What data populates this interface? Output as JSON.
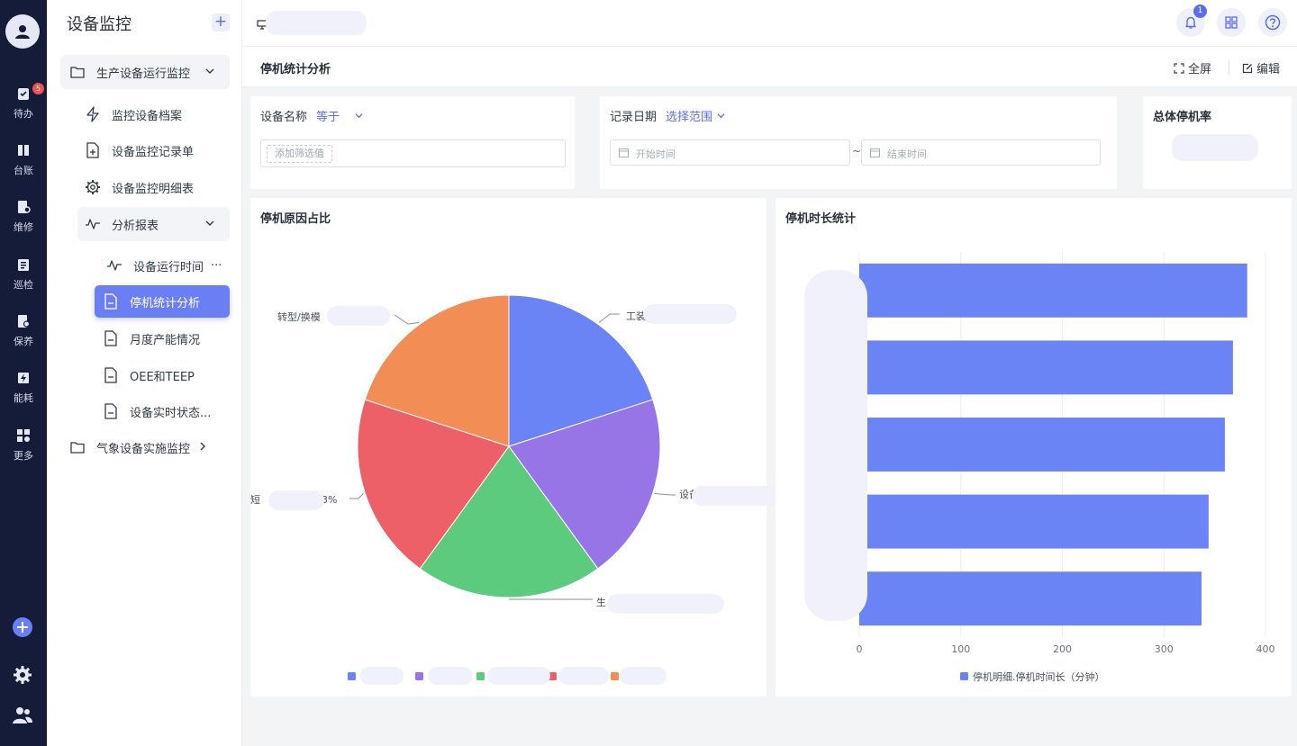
{
  "rail": {
    "badge": "5",
    "items": [
      {
        "label": "待办",
        "icon": "todo-icon"
      },
      {
        "label": "台账",
        "icon": "ledger-icon"
      },
      {
        "label": "维修",
        "icon": "repair-icon"
      },
      {
        "label": "巡检",
        "icon": "inspection-icon"
      },
      {
        "label": "保养",
        "icon": "maintenance-icon"
      },
      {
        "label": "能耗",
        "icon": "energy-icon"
      },
      {
        "label": "更多",
        "icon": "more-icon"
      }
    ]
  },
  "sidebar": {
    "title": "设备监控",
    "add_symbol": "+",
    "group1": "生产设备运行监控",
    "items": [
      {
        "label": "监控设备档案",
        "icon": "bolt-icon"
      },
      {
        "label": "设备监控记录单",
        "icon": "file-plus-icon"
      },
      {
        "label": "设备监控明细表",
        "icon": "gear-icon"
      }
    ],
    "subgroup": "分析报表",
    "subitems": [
      {
        "label": "设备运行时间",
        "icon": "pulse-icon"
      },
      {
        "label": "停机统计分析",
        "icon": "document-icon"
      },
      {
        "label": "月度产能情况",
        "icon": "document-icon"
      },
      {
        "label": "OEE和TEEP",
        "icon": "document-icon"
      },
      {
        "label": "设备实时状态...",
        "icon": "document-icon"
      }
    ],
    "more_dots": "···",
    "group2": "气象设备实施监控"
  },
  "topbar": {
    "notification_count": "1"
  },
  "page": {
    "title": "停机统计分析",
    "fullscreen": "全屏",
    "edit": "编辑"
  },
  "filters": {
    "device_label": "设备名称",
    "device_op": "等于",
    "device_tag": "添加筛选值",
    "date_label": "记录日期",
    "date_op": "选择范围",
    "start_placeholder": "开始时间",
    "end_placeholder": "结束时间",
    "tilde": "~",
    "rate_title": "总体停机率"
  },
  "chart_data": [
    {
      "type": "pie",
      "title": "停机原因占比",
      "slices": [
        {
          "label": "工装",
          "value": 20,
          "color": "#6b84f5"
        },
        {
          "label": "设备",
          "value": 20,
          "color": "#9775e6"
        },
        {
          "label": "生产",
          "value": 20,
          "color": "#5ccb7d"
        },
        {
          "label": "短",
          "value": 20,
          "color": "#ee6068"
        },
        {
          "label": "转型/换模",
          "value": 20,
          "color": "#f18d55"
        }
      ],
      "visible_label_fragments": [
        "工装",
        "设备",
        "生",
        "短",
        "3%",
        "转型/换模"
      ]
    },
    {
      "type": "bar",
      "orientation": "horizontal",
      "title": "停机时长统计",
      "series": [
        {
          "name": "停机明细.停机时间长（分钟）",
          "values": [
            382,
            368,
            360,
            344,
            337
          ]
        }
      ],
      "xlim": [
        0,
        400
      ],
      "x_ticks": [
        "0",
        "100",
        "200",
        "300",
        "400"
      ],
      "legend_position": "bottom-center",
      "grid": true,
      "color": "#6b84f5"
    }
  ]
}
